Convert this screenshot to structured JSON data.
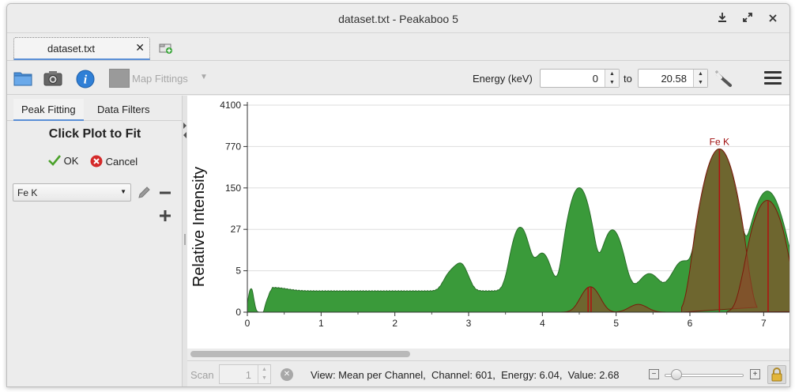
{
  "window": {
    "title": "dataset.txt - Peakaboo 5",
    "controls": [
      "pin-icon",
      "maximize-icon",
      "close-icon"
    ]
  },
  "tabs": [
    {
      "label": "dataset.txt",
      "close": "✕",
      "active": true
    }
  ],
  "toolbar": {
    "icons": [
      "open-folder-icon",
      "camera-icon",
      "info-icon"
    ],
    "map_fittings_label": "Map Fittings",
    "energy_label": "Energy (keV)",
    "energy_from": "0",
    "to_label": "to",
    "energy_to": "20.58"
  },
  "sidebar": {
    "tabs": [
      "Peak Fitting",
      "Data Filters"
    ],
    "active_tab": "Peak Fitting",
    "title": "Click Plot to Fit",
    "ok_label": "OK",
    "cancel_label": "Cancel",
    "selected_element": "Fe K"
  },
  "status": {
    "scan_label": "Scan",
    "scan_value": "1",
    "text": "View: Mean per Channel,  Channel: 601,  Energy: 6.04,  Value: 2.68"
  },
  "chart_data": {
    "type": "area",
    "ylabel": "Relative Intensity",
    "xlabel": "",
    "y_scale": "log",
    "y_ticks": [
      "4100",
      "770",
      "150",
      "27",
      "5",
      "0"
    ],
    "x_ticks": [
      "0",
      "1",
      "2",
      "3",
      "4",
      "5",
      "6",
      "7"
    ],
    "xlim": [
      0,
      7.35
    ],
    "grid": true,
    "colors": {
      "spectrum": "#3a9a3a",
      "fit": "#8b4a2a",
      "fit_line": "#b01010",
      "label": "#a01010"
    },
    "spectrum": {
      "baseline": 1.5,
      "shoulder": {
        "x": 0.35,
        "value": 1.9
      },
      "peaks": [
        {
          "x": 0.05,
          "value": 1.8
        },
        {
          "x": 2.75,
          "value": 2.7
        },
        {
          "x": 2.9,
          "value": 5
        },
        {
          "x": 3.7,
          "value": 28
        },
        {
          "x": 4.0,
          "value": 9
        },
        {
          "x": 4.5,
          "value": 150
        },
        {
          "x": 4.95,
          "value": 25
        },
        {
          "x": 5.45,
          "value": 2.8
        },
        {
          "x": 5.9,
          "value": 6
        },
        {
          "x": 6.4,
          "value": 700
        },
        {
          "x": 7.05,
          "value": 130
        },
        {
          "x": 7.35,
          "value": 3
        }
      ]
    },
    "fits": [
      {
        "x": 4.65,
        "value": 2.0
      },
      {
        "x": 5.3,
        "value": 0.4
      },
      {
        "x": 6.4,
        "value": 700
      },
      {
        "x": 7.05,
        "value": 90
      }
    ],
    "fit_lines": [
      4.62,
      4.66,
      6.4,
      7.06
    ],
    "annotations": [
      {
        "x": 6.4,
        "text": "Fe K"
      }
    ]
  }
}
